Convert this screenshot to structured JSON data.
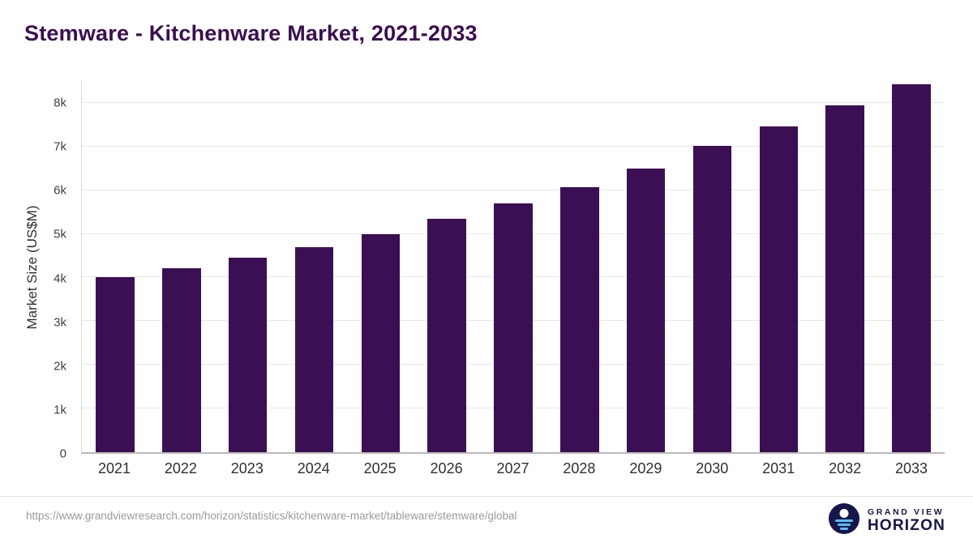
{
  "title": "Stemware - Kitchenware Market, 2021-2033",
  "chart_data": {
    "type": "bar",
    "title": "Stemware - Kitchenware Market, 2021-2033",
    "categories": [
      "2021",
      "2022",
      "2023",
      "2024",
      "2025",
      "2026",
      "2027",
      "2028",
      "2029",
      "2030",
      "2031",
      "2032",
      "2033"
    ],
    "values": [
      4000,
      4220,
      4460,
      4700,
      5000,
      5340,
      5690,
      6070,
      6500,
      7020,
      7470,
      7950,
      8420
    ],
    "xlabel": "",
    "ylabel": "Market Size (US$M)",
    "ylim": [
      0,
      8500
    ],
    "yticks": [
      "0",
      "1k",
      "2k",
      "3k",
      "4k",
      "5k",
      "6k",
      "7k",
      "8k"
    ],
    "ytick_values": [
      0,
      1000,
      2000,
      3000,
      4000,
      5000,
      6000,
      7000,
      8000
    ],
    "grid": true,
    "legend_position": "none",
    "bar_color": "#3b0f54"
  },
  "footer": {
    "source_url": "https://www.grandviewresearch.com/horizon/statistics/kitchenware-market/tableware/stemware/global",
    "brand_line1": "GRAND VIEW",
    "brand_line2": "HORIZON"
  },
  "colors": {
    "bar": "#3b0f54",
    "title": "#3b0e52",
    "gridline": "#e8e8e8",
    "axis_text": "#2f2f2f",
    "footer_text": "#9a9a9a",
    "brand_navy": "#17164b",
    "brand_blue": "#4fc3f7"
  }
}
